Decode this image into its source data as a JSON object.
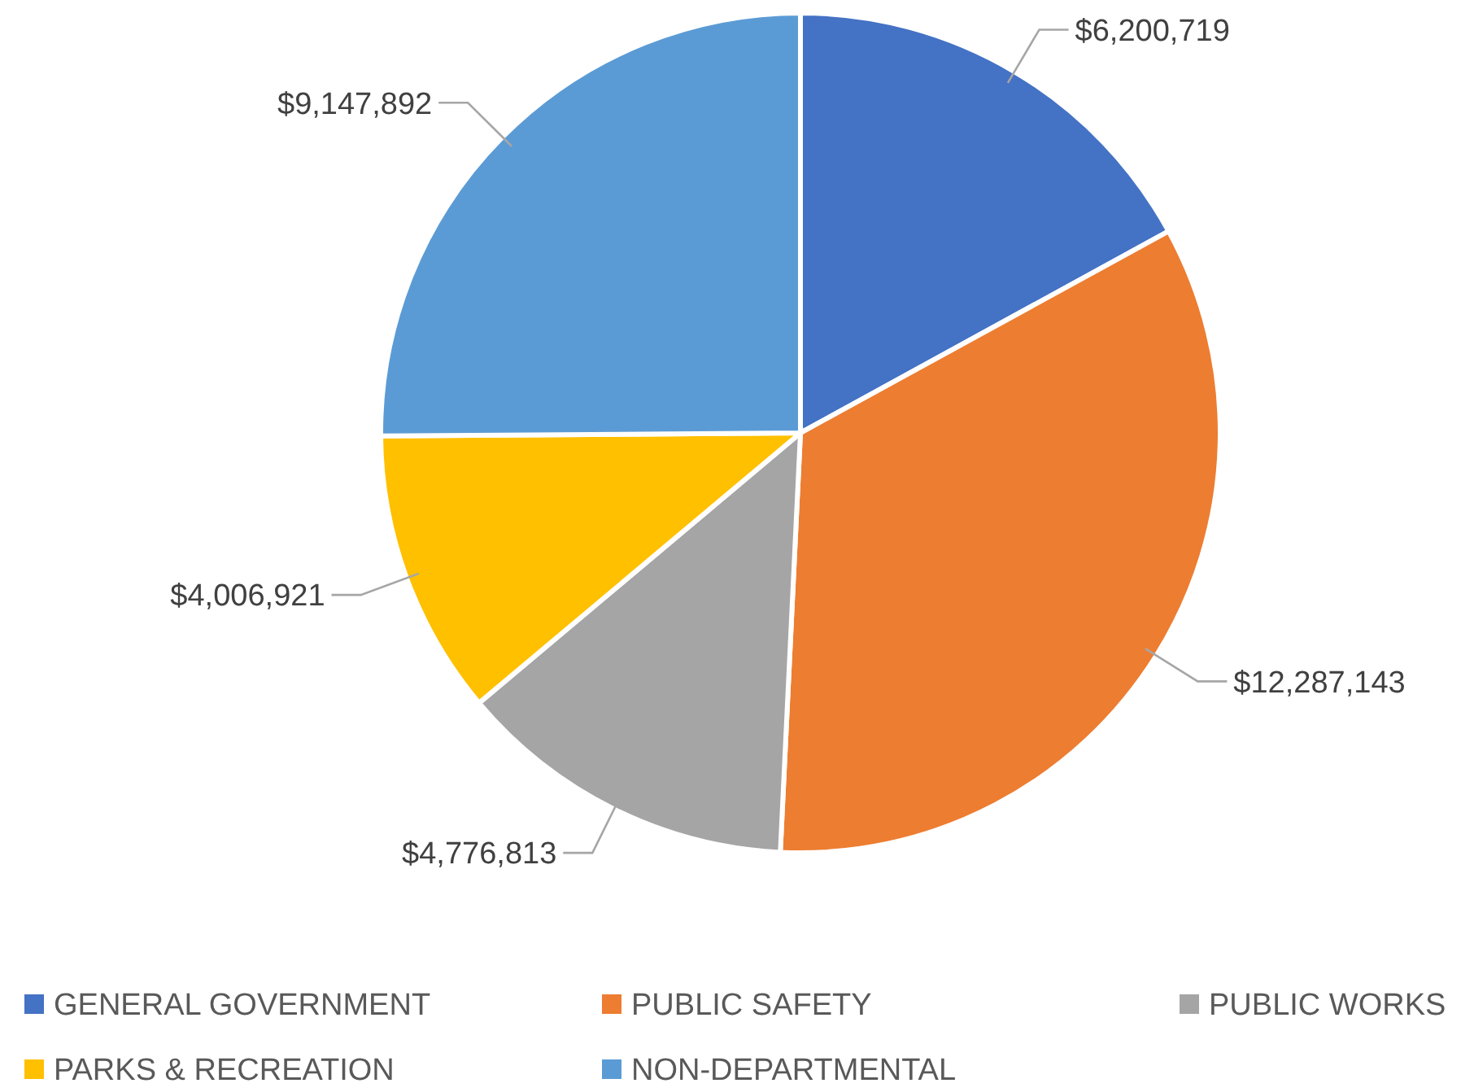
{
  "chart_data": {
    "type": "pie",
    "categories": [
      "GENERAL GOVERNMENT",
      "PUBLIC SAFETY",
      "PUBLIC WORKS",
      "PARKS & RECREATION",
      "NON-DEPARTMENTAL"
    ],
    "values": [
      6200719,
      12287143,
      4776813,
      4006921,
      9147892
    ],
    "colors": [
      "#4472c4",
      "#ed7d31",
      "#a5a5a5",
      "#ffc000",
      "#5b9bd5"
    ],
    "value_labels": [
      "$6,200,719",
      "$12,287,143",
      "$4,776,813",
      "$4,006,921",
      "$9,147,892"
    ],
    "legend": "bottom"
  }
}
